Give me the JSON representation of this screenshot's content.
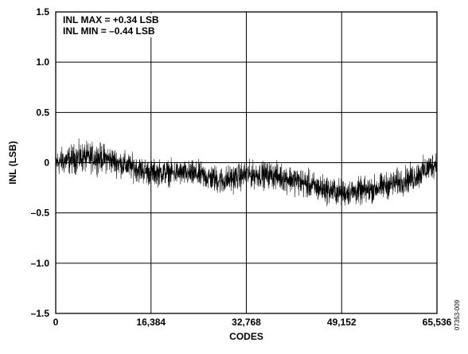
{
  "chart_data": {
    "type": "line",
    "title": "",
    "xlabel": "CODES",
    "ylabel": "INL (LSB)",
    "xlim": [
      0,
      65536
    ],
    "ylim": [
      -1.5,
      1.5
    ],
    "grid": true,
    "x_ticks": [
      0,
      16384,
      32768,
      49152,
      65536
    ],
    "x_tick_labels": [
      "0",
      "16,384",
      "32,768",
      "49,152",
      "65,536"
    ],
    "y_ticks": [
      -1.5,
      -1.0,
      -0.5,
      0,
      0.5,
      1.0,
      1.5
    ],
    "y_tick_labels": [
      "–1.5",
      "–1.0",
      "–0.5",
      "0",
      "0.5",
      "1.0",
      "1.5"
    ],
    "annotations": [
      "INL MAX = +0.34 LSB",
      "INL MIN = –0.44 LSB"
    ],
    "figure_id": "07353-009",
    "series": [
      {
        "color": "#000000",
        "envelope": {
          "x": [
            0,
            4096,
            8192,
            12288,
            16384,
            20480,
            24576,
            28672,
            32768,
            36864,
            40960,
            45056,
            49152,
            53248,
            57344,
            61440,
            65536
          ],
          "center": [
            0.0,
            0.05,
            0.05,
            -0.03,
            -0.1,
            -0.1,
            -0.12,
            -0.18,
            -0.12,
            -0.12,
            -0.17,
            -0.25,
            -0.3,
            -0.28,
            -0.22,
            -0.15,
            0.0
          ],
          "half_range": [
            0.14,
            0.16,
            0.15,
            0.14,
            0.14,
            0.13,
            0.14,
            0.15,
            0.14,
            0.14,
            0.15,
            0.15,
            0.14,
            0.14,
            0.14,
            0.15,
            0.14
          ]
        }
      }
    ]
  }
}
